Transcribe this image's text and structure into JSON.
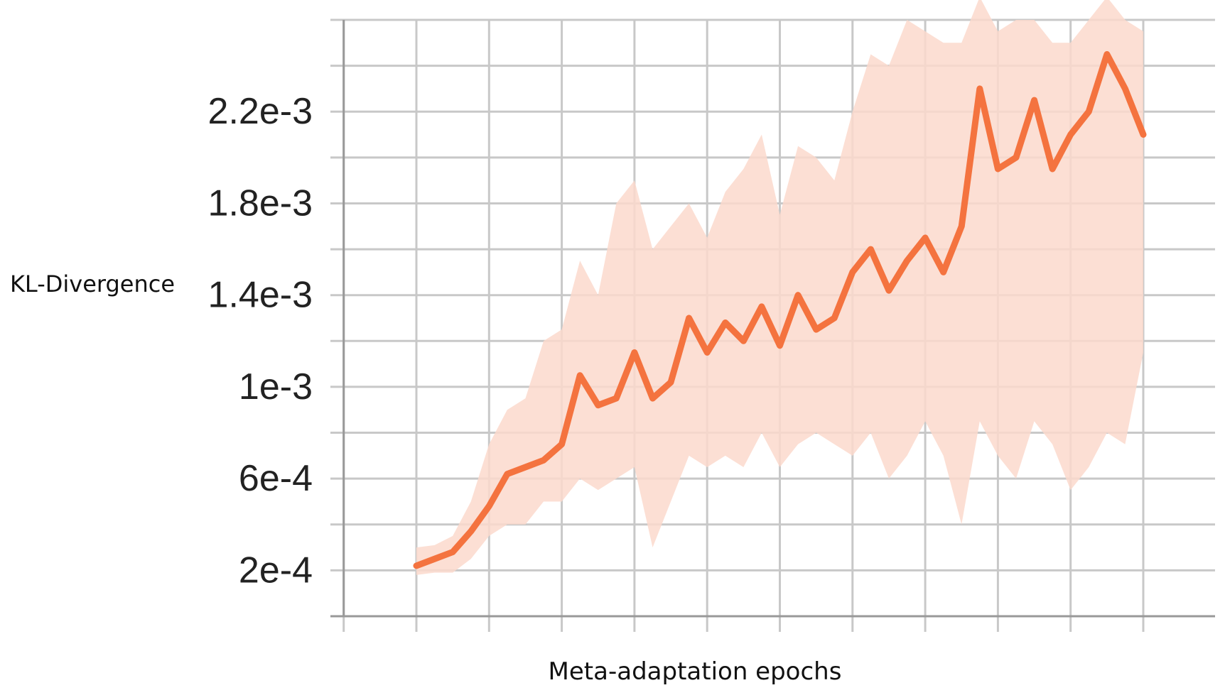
{
  "chart_data": {
    "type": "line",
    "title": "",
    "xlabel": "Meta-adaptation epochs",
    "ylabel": "KL-Divergence",
    "y_tick_labels": [
      "2.2e-3",
      "1.8e-3",
      "1.4e-3",
      "1e-3",
      "6e-4",
      "2e-4"
    ],
    "y_tick_values": [
      0.0022,
      0.0018,
      0.0014,
      0.001,
      0.0006,
      0.0002
    ],
    "ylim": [
      0.0,
      0.0026
    ],
    "xlim": [
      -1,
      11
    ],
    "x_ticks_shown_without_labels": true,
    "grid": true,
    "legend": "none",
    "colors": {
      "smoothed": "#f4733f",
      "raw": "#fcd9cc",
      "grid": "#c8c8c8",
      "axis": "#999999"
    },
    "series": [
      {
        "style": "smoothed",
        "x": [
          0.0,
          0.25,
          0.5,
          0.75,
          1.0,
          1.25,
          1.5,
          1.75,
          2.0,
          2.25,
          2.5,
          2.75,
          3.0,
          3.25,
          3.5,
          3.75,
          4.0,
          4.25,
          4.5,
          4.75,
          5.0,
          5.25,
          5.5,
          5.75,
          6.0,
          6.25,
          6.5,
          6.75,
          7.0,
          7.25,
          7.5,
          7.75,
          8.0,
          8.25,
          8.5,
          8.75,
          9.0,
          9.25,
          9.5,
          9.75,
          10.0
        ],
        "y": [
          0.00022,
          0.00025,
          0.00028,
          0.00037,
          0.00048,
          0.00062,
          0.00065,
          0.00068,
          0.00075,
          0.00105,
          0.00092,
          0.00095,
          0.00115,
          0.00095,
          0.00102,
          0.0013,
          0.00115,
          0.00128,
          0.0012,
          0.00135,
          0.00118,
          0.0014,
          0.00125,
          0.0013,
          0.0015,
          0.0016,
          0.00142,
          0.00155,
          0.00165,
          0.0015,
          0.0017,
          0.0023,
          0.00195,
          0.002,
          0.00225,
          0.00195,
          0.0021,
          0.0022,
          0.00245,
          0.0023,
          0.0021
        ]
      },
      {
        "style": "raw",
        "x": [
          0.0,
          0.25,
          0.5,
          0.75,
          1.0,
          1.25,
          1.5,
          1.75,
          2.0,
          2.25,
          2.5,
          2.75,
          3.0,
          3.25,
          3.5,
          3.75,
          4.0,
          4.25,
          4.5,
          4.75,
          5.0,
          5.25,
          5.5,
          5.75,
          6.0,
          6.25,
          6.5,
          6.75,
          7.0,
          7.25,
          7.5,
          7.75,
          8.0,
          8.25,
          8.5,
          8.75,
          9.0,
          9.25,
          9.5,
          9.75,
          10.0
        ],
        "y_low": [
          0.00018,
          0.00019,
          0.00019,
          0.00025,
          0.00035,
          0.0004,
          0.0004,
          0.0005,
          0.0005,
          0.0006,
          0.00055,
          0.0006,
          0.00065,
          0.0003,
          0.0005,
          0.0007,
          0.00065,
          0.0007,
          0.00065,
          0.0008,
          0.00065,
          0.00075,
          0.0008,
          0.00075,
          0.0007,
          0.0008,
          0.0006,
          0.0007,
          0.00085,
          0.0007,
          0.0004,
          0.00085,
          0.0007,
          0.0006,
          0.00085,
          0.00075,
          0.00055,
          0.00065,
          0.0008,
          0.00075,
          0.00115
        ],
        "y_high": [
          0.0003,
          0.00031,
          0.00035,
          0.0005,
          0.00075,
          0.0009,
          0.00095,
          0.0012,
          0.00125,
          0.00155,
          0.0014,
          0.0018,
          0.0019,
          0.0016,
          0.0017,
          0.0018,
          0.00165,
          0.00185,
          0.00195,
          0.0021,
          0.00175,
          0.00205,
          0.002,
          0.0019,
          0.0022,
          0.00245,
          0.0024,
          0.0026,
          0.00255,
          0.0025,
          0.0025,
          0.0027,
          0.00255,
          0.0026,
          0.0026,
          0.0025,
          0.0025,
          0.0026,
          0.0027,
          0.0026,
          0.00255
        ]
      }
    ]
  }
}
